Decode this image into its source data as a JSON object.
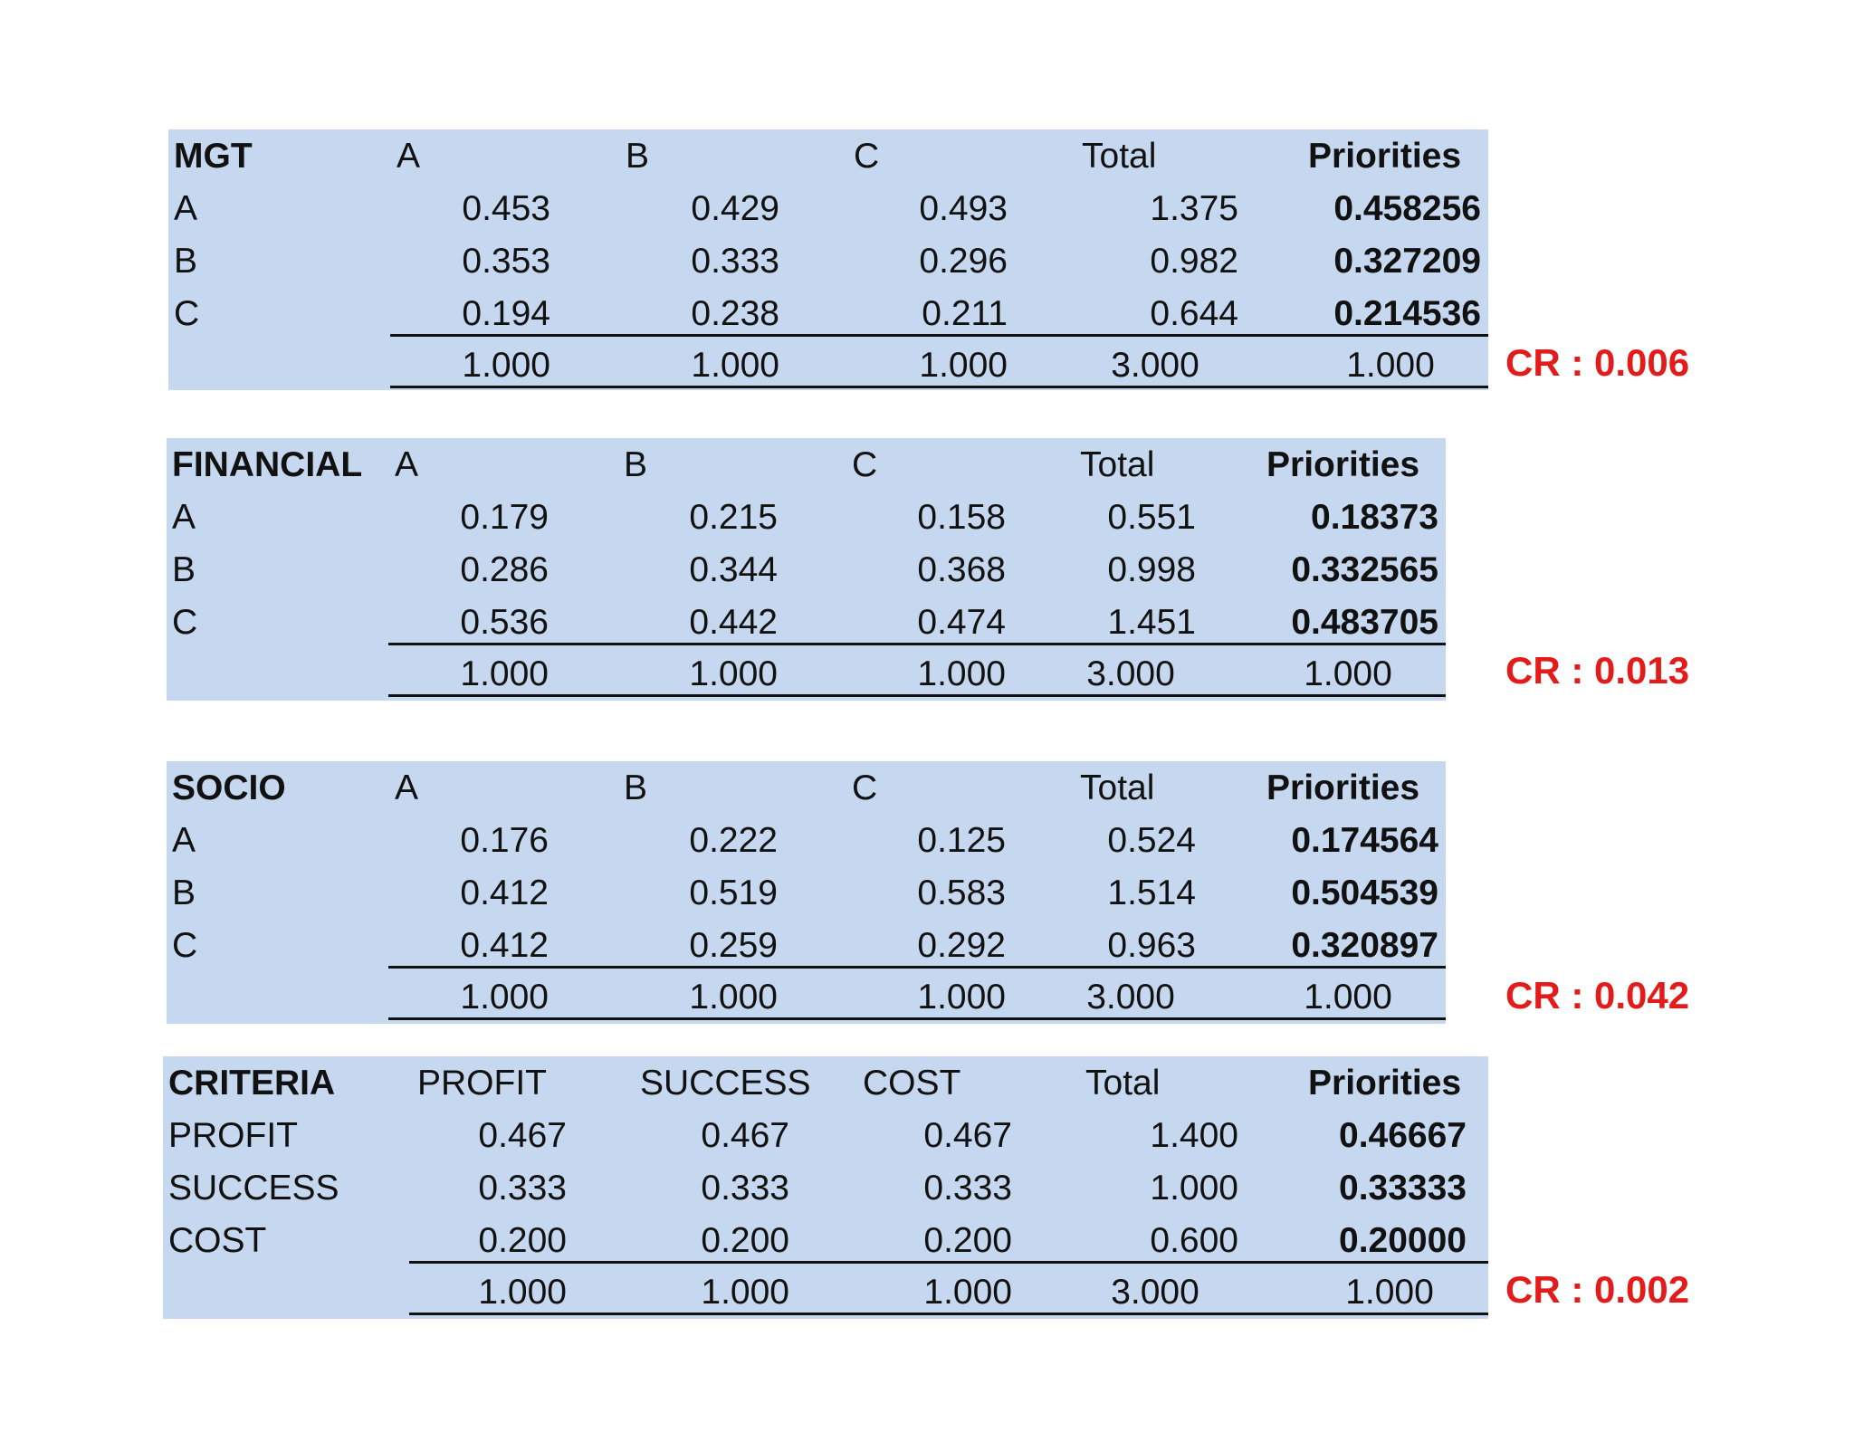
{
  "colors": {
    "table_bg": "#c6d8ef",
    "cr_text": "#e31b1b"
  },
  "tables": [
    {
      "name": "MGT",
      "columns": [
        "A",
        "B",
        "C",
        "Total",
        "Priorities"
      ],
      "rows": [
        {
          "label": "A",
          "values": [
            "0.453",
            "0.429",
            "0.493"
          ],
          "total": "1.375",
          "priority": "0.458256"
        },
        {
          "label": "B",
          "values": [
            "0.353",
            "0.333",
            "0.296"
          ],
          "total": "0.982",
          "priority": "0.327209"
        },
        {
          "label": "C",
          "values": [
            "0.194",
            "0.238",
            "0.211"
          ],
          "total": "0.644",
          "priority": "0.214536"
        }
      ],
      "sums": [
        "1.000",
        "1.000",
        "1.000"
      ],
      "sum_total": "3.000",
      "sum_priority": "1.000",
      "cr": "CR : 0.006"
    },
    {
      "name": "FINANCIAL",
      "columns": [
        "A",
        "B",
        "C",
        "Total",
        "Priorities"
      ],
      "rows": [
        {
          "label": "A",
          "values": [
            "0.179",
            "0.215",
            "0.158"
          ],
          "total": "0.551",
          "priority": "0.18373"
        },
        {
          "label": "B",
          "values": [
            "0.286",
            "0.344",
            "0.368"
          ],
          "total": "0.998",
          "priority": "0.332565"
        },
        {
          "label": "C",
          "values": [
            "0.536",
            "0.442",
            "0.474"
          ],
          "total": "1.451",
          "priority": "0.483705"
        }
      ],
      "sums": [
        "1.000",
        "1.000",
        "1.000"
      ],
      "sum_total": "3.000",
      "sum_priority": "1.000",
      "cr": "CR : 0.013"
    },
    {
      "name": "SOCIO",
      "columns": [
        "A",
        "B",
        "C",
        "Total",
        "Priorities"
      ],
      "rows": [
        {
          "label": "A",
          "values": [
            "0.176",
            "0.222",
            "0.125"
          ],
          "total": "0.524",
          "priority": "0.174564"
        },
        {
          "label": "B",
          "values": [
            "0.412",
            "0.519",
            "0.583"
          ],
          "total": "1.514",
          "priority": "0.504539"
        },
        {
          "label": "C",
          "values": [
            "0.412",
            "0.259",
            "0.292"
          ],
          "total": "0.963",
          "priority": "0.320897"
        }
      ],
      "sums": [
        "1.000",
        "1.000",
        "1.000"
      ],
      "sum_total": "3.000",
      "sum_priority": "1.000",
      "cr": "CR : 0.042"
    },
    {
      "name": "CRITERIA",
      "columns": [
        "PROFIT",
        "SUCCESS",
        "COST",
        "Total",
        "Priorities"
      ],
      "rows": [
        {
          "label": "PROFIT",
          "values": [
            "0.467",
            "0.467",
            "0.467"
          ],
          "total": "1.400",
          "priority": "0.46667"
        },
        {
          "label": "SUCCESS",
          "values": [
            "0.333",
            "0.333",
            "0.333"
          ],
          "total": "1.000",
          "priority": "0.33333"
        },
        {
          "label": "COST",
          "values": [
            "0.200",
            "0.200",
            "0.200"
          ],
          "total": "0.600",
          "priority": "0.20000"
        }
      ],
      "sums": [
        "1.000",
        "1.000",
        "1.000"
      ],
      "sum_total": "3.000",
      "sum_priority": "1.000",
      "cr": "CR : 0.002"
    }
  ]
}
